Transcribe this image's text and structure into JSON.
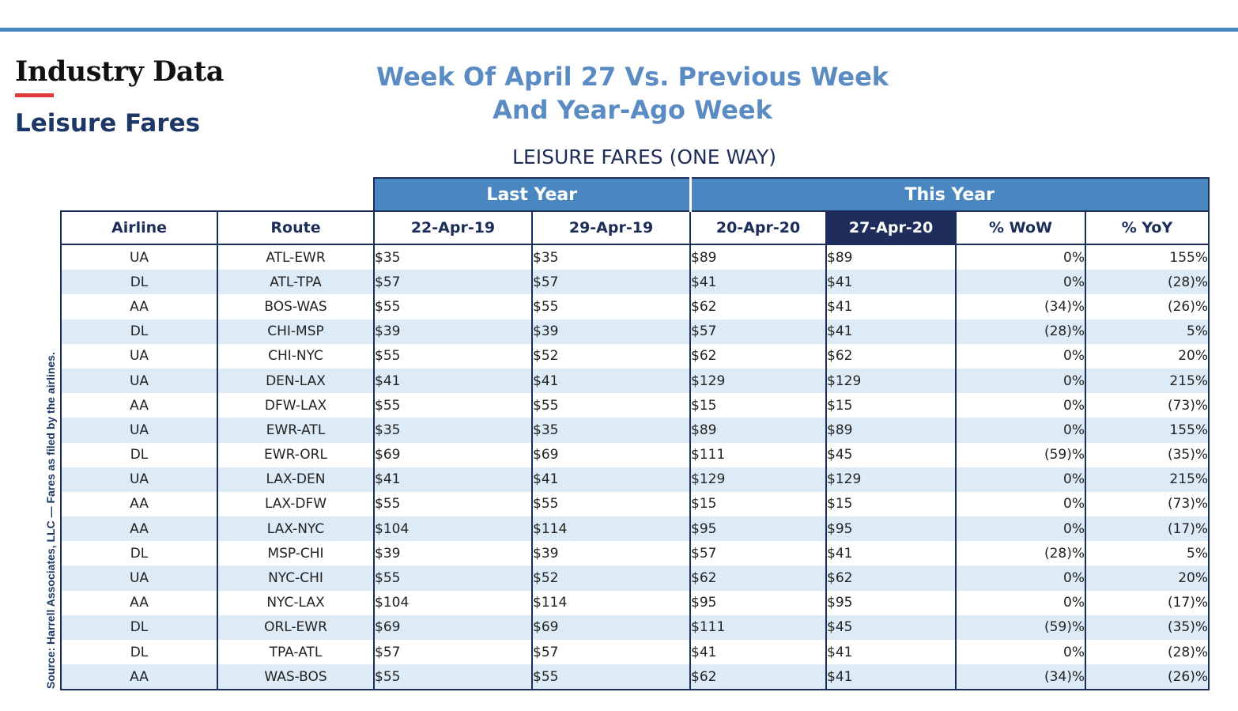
{
  "header": {
    "brand": "Industry Data",
    "section": "Leisure Fares",
    "headline_line1": "Week Of April 27 Vs. Previous Week",
    "headline_line2": "And Year-Ago Week",
    "table_title": "LEISURE FARES (ONE WAY)"
  },
  "source_note": "Source: Harrell Associates, LLC — Fares as filed by the airlines.",
  "colors": {
    "accent_blue": "#4a87c0",
    "navy": "#1d2d59",
    "brand_red": "#e23a3a",
    "row_stripe": "#ddebf6",
    "headline_blue": "#5a8cc3"
  },
  "table": {
    "groups": {
      "last_year": "Last Year",
      "this_year": "This Year"
    },
    "columns": [
      "Airline",
      "Route",
      "22-Apr-19",
      "29-Apr-19",
      "20-Apr-20",
      "27-Apr-20",
      "% WoW",
      "% YoY"
    ],
    "highlighted_column": "27-Apr-20",
    "rows": [
      [
        "UA",
        "ATL-EWR",
        "$35",
        "$35",
        "$89",
        "$89",
        "0%",
        "155%"
      ],
      [
        "DL",
        "ATL-TPA",
        "$57",
        "$57",
        "$41",
        "$41",
        "0%",
        "(28)%"
      ],
      [
        "AA",
        "BOS-WAS",
        "$55",
        "$55",
        "$62",
        "$41",
        "(34)%",
        "(26)%"
      ],
      [
        "DL",
        "CHI-MSP",
        "$39",
        "$39",
        "$57",
        "$41",
        "(28)%",
        "5%"
      ],
      [
        "UA",
        "CHI-NYC",
        "$55",
        "$52",
        "$62",
        "$62",
        "0%",
        "20%"
      ],
      [
        "UA",
        "DEN-LAX",
        "$41",
        "$41",
        "$129",
        "$129",
        "0%",
        "215%"
      ],
      [
        "AA",
        "DFW-LAX",
        "$55",
        "$55",
        "$15",
        "$15",
        "0%",
        "(73)%"
      ],
      [
        "UA",
        "EWR-ATL",
        "$35",
        "$35",
        "$89",
        "$89",
        "0%",
        "155%"
      ],
      [
        "DL",
        "EWR-ORL",
        "$69",
        "$69",
        "$111",
        "$45",
        "(59)%",
        "(35)%"
      ],
      [
        "UA",
        "LAX-DEN",
        "$41",
        "$41",
        "$129",
        "$129",
        "0%",
        "215%"
      ],
      [
        "AA",
        "LAX-DFW",
        "$55",
        "$55",
        "$15",
        "$15",
        "0%",
        "(73)%"
      ],
      [
        "AA",
        "LAX-NYC",
        "$104",
        "$114",
        "$95",
        "$95",
        "0%",
        "(17)%"
      ],
      [
        "DL",
        "MSP-CHI",
        "$39",
        "$39",
        "$57",
        "$41",
        "(28)%",
        "5%"
      ],
      [
        "UA",
        "NYC-CHI",
        "$55",
        "$52",
        "$62",
        "$62",
        "0%",
        "20%"
      ],
      [
        "AA",
        "NYC-LAX",
        "$104",
        "$114",
        "$95",
        "$95",
        "0%",
        "(17)%"
      ],
      [
        "DL",
        "ORL-EWR",
        "$69",
        "$69",
        "$111",
        "$45",
        "(59)%",
        "(35)%"
      ],
      [
        "DL",
        "TPA-ATL",
        "$57",
        "$57",
        "$41",
        "$41",
        "0%",
        "(28)%"
      ],
      [
        "AA",
        "WAS-BOS",
        "$55",
        "$55",
        "$62",
        "$41",
        "(34)%",
        "(26)%"
      ]
    ]
  }
}
